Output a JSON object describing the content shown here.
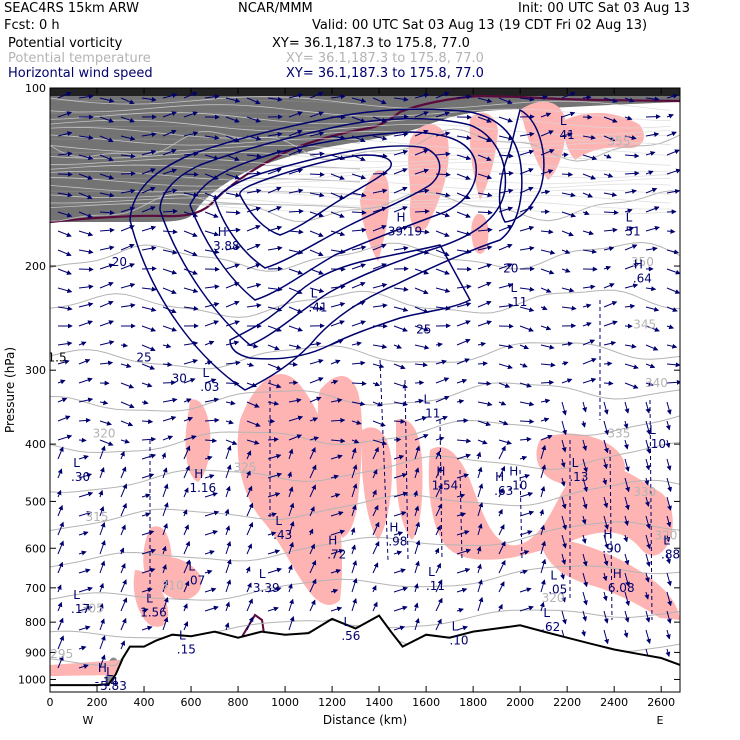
{
  "header": {
    "model": "SEAC4RS 15km ARW",
    "forecast": "Fcst:     0 h",
    "org": "NCAR/MMM",
    "init": "Init: 00 UTC Sat 03 Aug 13",
    "valid": "Valid: 00 UTC Sat 03 Aug 13 (19 CDT Fri 02 Aug 13)",
    "fields": [
      {
        "name": "Potential vorticity",
        "xy": "XY=  36.1,187.3 to 175.8, 77.0",
        "color": "#000000"
      },
      {
        "name": "Potential temperature",
        "xy": "XY=  36.1,187.3 to 175.8, 77.0",
        "color": "#b4b4b4"
      },
      {
        "name": "Horizontal wind speed",
        "xy": "XY=  36.1,187.3 to 175.8, 77.0",
        "color": "#00006e"
      }
    ]
  },
  "colors": {
    "pv_fill": "#5a5a5a",
    "pv_contour": "#5a0a3c",
    "theta_contour": "#b4b4b4",
    "wind_contour": "#00006e",
    "vectors": "#00006e",
    "cloud_fill": "#ffb4b4",
    "terrain": "#000000"
  },
  "chart_data": {
    "type": "cross-section",
    "title": "",
    "xlabel": "Distance (km)",
    "ylabel": "Pressure (hPa)",
    "xlim": [
      0,
      2680
    ],
    "ylim": [
      1050,
      100
    ],
    "y_scale": "log-pressure",
    "x_ticks": [
      "0",
      "200",
      "400",
      "600",
      "800",
      "1000",
      "1200",
      "1400",
      "1600",
      "1800",
      "2000",
      "2200",
      "2400",
      "2600"
    ],
    "y_ticks": [
      "100",
      "200",
      "300",
      "400",
      "500",
      "600",
      "700",
      "800",
      "900",
      "1000"
    ],
    "x_end_labels": {
      "left": "W",
      "right": "E"
    },
    "terrain_surface": [
      [
        0,
        1022
      ],
      [
        200,
        1022
      ],
      [
        250,
        1018
      ],
      [
        280,
        980
      ],
      [
        310,
        920
      ],
      [
        340,
        880
      ],
      [
        400,
        880
      ],
      [
        450,
        860
      ],
      [
        520,
        840
      ],
      [
        600,
        845
      ],
      [
        700,
        830
      ],
      [
        800,
        850
      ],
      [
        900,
        830
      ],
      [
        1000,
        840
      ],
      [
        1100,
        835
      ],
      [
        1200,
        790
      ],
      [
        1300,
        820
      ],
      [
        1400,
        780
      ],
      [
        1450,
        830
      ],
      [
        1500,
        880
      ],
      [
        1600,
        840
      ],
      [
        1700,
        850
      ],
      [
        1800,
        830
      ],
      [
        1900,
        820
      ],
      [
        2000,
        810
      ],
      [
        2100,
        830
      ],
      [
        2200,
        850
      ],
      [
        2300,
        870
      ],
      [
        2400,
        890
      ],
      [
        2500,
        905
      ],
      [
        2600,
        920
      ],
      [
        2680,
        945
      ]
    ],
    "theta_labels": [
      {
        "text": "355",
        "x": 2420,
        "p": 125
      },
      {
        "text": "350",
        "x": 2520,
        "p": 200
      },
      {
        "text": "345",
        "x": 2530,
        "p": 255
      },
      {
        "text": "340",
        "x": 2580,
        "p": 320
      },
      {
        "text": "335",
        "x": 2420,
        "p": 390
      },
      {
        "text": "330",
        "x": 2530,
        "p": 490
      },
      {
        "text": "325",
        "x": 830,
        "p": 445
      },
      {
        "text": "320",
        "x": 230,
        "p": 390
      },
      {
        "text": "315",
        "x": 200,
        "p": 540
      },
      {
        "text": "310",
        "x": 520,
        "p": 705
      },
      {
        "text": "305",
        "x": 180,
        "p": 770
      },
      {
        "text": "295",
        "x": 50,
        "p": 920
      },
      {
        "text": "320",
        "x": 2140,
        "p": 740
      },
      {
        "text": "320",
        "x": 2620,
        "p": 580
      }
    ],
    "wind_labels": [
      {
        "text": "20",
        "x": 295,
        "p": 200
      },
      {
        "text": "25",
        "x": 400,
        "p": 290
      },
      {
        "text": "30",
        "x": 550,
        "p": 315
      },
      {
        "text": "25",
        "x": 1590,
        "p": 260
      },
      {
        "text": "20",
        "x": 1960,
        "p": 205
      }
    ],
    "pv_label": {
      "text": "1.5",
      "x": 30,
      "p": 290
    },
    "extrema": [
      {
        "type": "H",
        "value": "3.88",
        "x": 750,
        "p": 185
      },
      {
        "type": "H",
        "value": "39.19",
        "x": 1510,
        "p": 175
      },
      {
        "type": "L",
        "value": "41",
        "x": 2200,
        "p": 120
      },
      {
        "type": "L",
        "value": "51",
        "x": 2480,
        "p": 175
      },
      {
        "type": "H",
        "value": ".64",
        "x": 2520,
        "p": 210
      },
      {
        "type": "L",
        "value": ".11",
        "x": 1990,
        "p": 230
      },
      {
        "type": "L",
        "value": ".41",
        "x": 1140,
        "p": 235
      },
      {
        "type": "L",
        "value": ".03",
        "x": 680,
        "p": 320
      },
      {
        "type": "L",
        "value": ".11",
        "x": 1620,
        "p": 355
      },
      {
        "type": "L",
        "value": ".10",
        "x": 2580,
        "p": 400
      },
      {
        "type": "L",
        "value": ".30",
        "x": 130,
        "p": 455
      },
      {
        "type": "H",
        "value": "1.16",
        "x": 650,
        "p": 475
      },
      {
        "type": "H",
        "value": "1.54",
        "x": 1680,
        "p": 470
      },
      {
        "type": "H",
        "value": ".63",
        "x": 1930,
        "p": 480
      },
      {
        "type": "H",
        "value": ".10",
        "x": 1990,
        "p": 470
      },
      {
        "type": "L",
        "value": ".13",
        "x": 2250,
        "p": 455
      },
      {
        "type": "L",
        "value": ".43",
        "x": 990,
        "p": 570
      },
      {
        "type": "H",
        "value": ".98",
        "x": 1480,
        "p": 585
      },
      {
        "type": "H",
        "value": ".72",
        "x": 1220,
        "p": 615
      },
      {
        "type": "H",
        "value": ".90",
        "x": 2390,
        "p": 600
      },
      {
        "type": "L",
        "value": ".88",
        "x": 2640,
        "p": 615
      },
      {
        "type": "L",
        "value": ".07",
        "x": 620,
        "p": 680
      },
      {
        "type": "L",
        "value": "3.39",
        "x": 920,
        "p": 700
      },
      {
        "type": "L",
        "value": ".11",
        "x": 1640,
        "p": 695
      },
      {
        "type": "L",
        "value": ".05",
        "x": 2160,
        "p": 705
      },
      {
        "type": "H",
        "value": "6.08",
        "x": 2430,
        "p": 700
      },
      {
        "type": "L",
        "value": ".17",
        "x": 130,
        "p": 760
      },
      {
        "type": "L",
        "value": "1.56",
        "x": 440,
        "p": 770
      },
      {
        "type": "L",
        "value": ".62",
        "x": 2130,
        "p": 815
      },
      {
        "type": "L",
        "value": ".56",
        "x": 1280,
        "p": 845
      },
      {
        "type": "L",
        "value": ".10",
        "x": 1740,
        "p": 860
      },
      {
        "type": "L",
        "value": ".15",
        "x": 580,
        "p": 890
      },
      {
        "type": "H",
        "value": "-.14",
        "x": 240,
        "p": 1010
      },
      {
        "type": "L",
        "value": "5.83",
        "x": 270,
        "p": 1025
      }
    ]
  }
}
